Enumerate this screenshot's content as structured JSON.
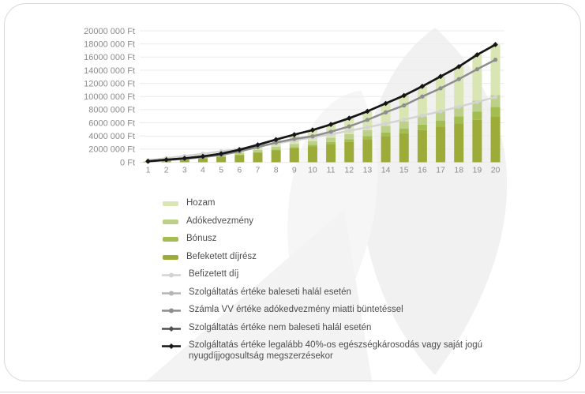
{
  "y_axis_unit": "Ft",
  "chart_data": {
    "type": "bar",
    "subtype": "stacked-bars-with-lines",
    "categories": [
      "1",
      "2",
      "3",
      "4",
      "5",
      "6",
      "7",
      "8",
      "9",
      "10",
      "11",
      "12",
      "13",
      "14",
      "15",
      "16",
      "17",
      "18",
      "19",
      "20"
    ],
    "xlabel": "",
    "ylabel": "",
    "ylim": [
      0,
      20000000
    ],
    "grid": true,
    "legend_position": "bottom-left",
    "y_axis": {
      "tick_step": 2000000,
      "tick_labels": [
        "0 Ft",
        "2000 000 Ft",
        "4000 000 Ft",
        "6000 000 Ft",
        "8000 000 Ft",
        "10000 000 Ft",
        "12000 000 Ft",
        "14000 000 Ft",
        "16000 000 Ft",
        "18000 000 Ft",
        "20000 000 Ft"
      ]
    },
    "bar_series": [
      {
        "key": "befektetett-dijresz",
        "name": "Befeketett díjrész",
        "color": "#9dab39",
        "values": [
          100000,
          250000,
          400000,
          580000,
          800000,
          1100000,
          1450000,
          1800000,
          2100000,
          2400000,
          2750000,
          3100000,
          3500000,
          3950000,
          4400000,
          4900000,
          5400000,
          5900000,
          6450000,
          7000000
        ]
      },
      {
        "key": "bonusz",
        "name": "Bónusz",
        "color": "#a3bd50",
        "values": [
          0,
          0,
          10000,
          20000,
          40000,
          70000,
          100000,
          140000,
          190000,
          250000,
          320000,
          400000,
          490000,
          590000,
          700000,
          820000,
          950000,
          1090000,
          1240000,
          1400000
        ]
      },
      {
        "key": "adokedvezmeny",
        "name": "Adókedvezmény",
        "color": "#bdd08a",
        "values": [
          30000,
          70000,
          100000,
          140000,
          190000,
          250000,
          320000,
          400000,
          480000,
          570000,
          670000,
          770000,
          880000,
          1000000,
          1120000,
          1250000,
          1390000,
          1530000,
          1680000,
          1840000
        ]
      },
      {
        "key": "hozam",
        "name": "Hozam",
        "color": "#d9e5b3",
        "values": [
          20000,
          60000,
          90000,
          160000,
          270000,
          480000,
          780000,
          1110000,
          1430000,
          1680000,
          2010000,
          2430000,
          2880000,
          3410000,
          3930000,
          4580000,
          5310000,
          6030000,
          6980000,
          7660000
        ]
      }
    ],
    "line_series": [
      {
        "key": "befizetett-dij",
        "name": "Befizetett díj",
        "color": "#d3d3d3",
        "marker": "circle",
        "values": [
          300000,
          620000,
          950000,
          1290000,
          1660000,
          2040000,
          2440000,
          2870000,
          3310000,
          3770000,
          4260000,
          4780000,
          5320000,
          5890000,
          6480000,
          7110000,
          7760000,
          8450000,
          9170000,
          9920000
        ]
      },
      {
        "key": "baleseti-halal",
        "name": "Szolgáltatás értéke baleseti halál esetén",
        "color": "#b5b5b5",
        "marker": "circle",
        "values": [
          120000,
          330000,
          520000,
          780000,
          1120000,
          1650000,
          2300000,
          3000000,
          3550000,
          3950000,
          4650000,
          5450000,
          6450000,
          7600000,
          8650000,
          10000000,
          11250000,
          12650000,
          14150000,
          15600000
        ]
      },
      {
        "key": "szamla-vv-buntetessel",
        "name": "Számla VV értéke adókedvezmény miatti büntetéssel",
        "color": "#8e8e8e",
        "marker": "circle",
        "values": [
          120000,
          330000,
          520000,
          780000,
          1120000,
          1650000,
          2300000,
          3000000,
          3550000,
          3950000,
          4650000,
          5450000,
          6450000,
          7600000,
          8650000,
          10000000,
          11250000,
          12650000,
          14150000,
          15600000
        ]
      },
      {
        "key": "nem-baleseti-halal",
        "name": "Szolgáltatás értéke nem baleseti halál esetén",
        "color": "#4f4f4f",
        "marker": "diamond",
        "values": [
          150000,
          380000,
          600000,
          900000,
          1300000,
          1900000,
          2650000,
          3450000,
          4200000,
          4900000,
          5750000,
          6700000,
          7750000,
          8950000,
          10150000,
          11550000,
          13050000,
          14550000,
          16350000,
          17900000
        ]
      },
      {
        "key": "legalabb-40-szazalek",
        "name": "Szolgáltatás értéke legalább 40%-os egészségkárosodás vagy saját jogú nyugdíjjogosultság megszerzésekor",
        "color": "#161616",
        "marker": "diamond",
        "values": [
          150000,
          380000,
          600000,
          900000,
          1300000,
          1900000,
          2650000,
          3450000,
          4200000,
          4900000,
          5750000,
          6700000,
          7750000,
          8950000,
          10150000,
          11550000,
          13050000,
          14550000,
          16350000,
          17900000
        ]
      }
    ]
  },
  "legend": {
    "items": [
      {
        "key": "hozam",
        "label": "Hozam",
        "swatch": "bar",
        "color": "#d9e5b3"
      },
      {
        "key": "adokedvezmeny",
        "label": "Adókedvezmény",
        "swatch": "bar",
        "color": "#bdd08a"
      },
      {
        "key": "bonusz",
        "label": "Bónusz",
        "swatch": "bar",
        "color": "#a3bd50"
      },
      {
        "key": "befektetett-dijresz",
        "label": "Befeketett díjrész",
        "swatch": "bar",
        "color": "#9dab39"
      },
      {
        "key": "befizetett-dij",
        "label": "Befizetett díj",
        "swatch": "line",
        "marker": "circle",
        "color": "#d3d3d3"
      },
      {
        "key": "baleseti-halal",
        "label": "Szolgáltatás értéke baleseti halál esetén",
        "swatch": "line",
        "marker": "circle",
        "color": "#b5b5b5"
      },
      {
        "key": "szamla-vv-buntetessel",
        "label": "Számla VV értéke adókedvezmény miatti büntetéssel",
        "swatch": "line",
        "marker": "circle",
        "color": "#8e8e8e"
      },
      {
        "key": "nem-baleseti-halal",
        "label": "Szolgáltatás értéke nem baleseti halál esetén",
        "swatch": "line",
        "marker": "diamond",
        "color": "#4f4f4f"
      },
      {
        "key": "legalabb-40-szazalek",
        "label": "Szolgáltatás értéke legalább 40%-os egészségkárosodás vagy saját jogú nyugdíjjogosultság megszerzésekor",
        "swatch": "line",
        "marker": "diamond",
        "color": "#161616"
      }
    ]
  },
  "colors": {
    "grid": "#ebebeb",
    "axis_text": "#8c8c8c",
    "legend_text": "#4d4d4d",
    "card_border": "#d8d8d8",
    "watermark": "#f1f1f1"
  }
}
